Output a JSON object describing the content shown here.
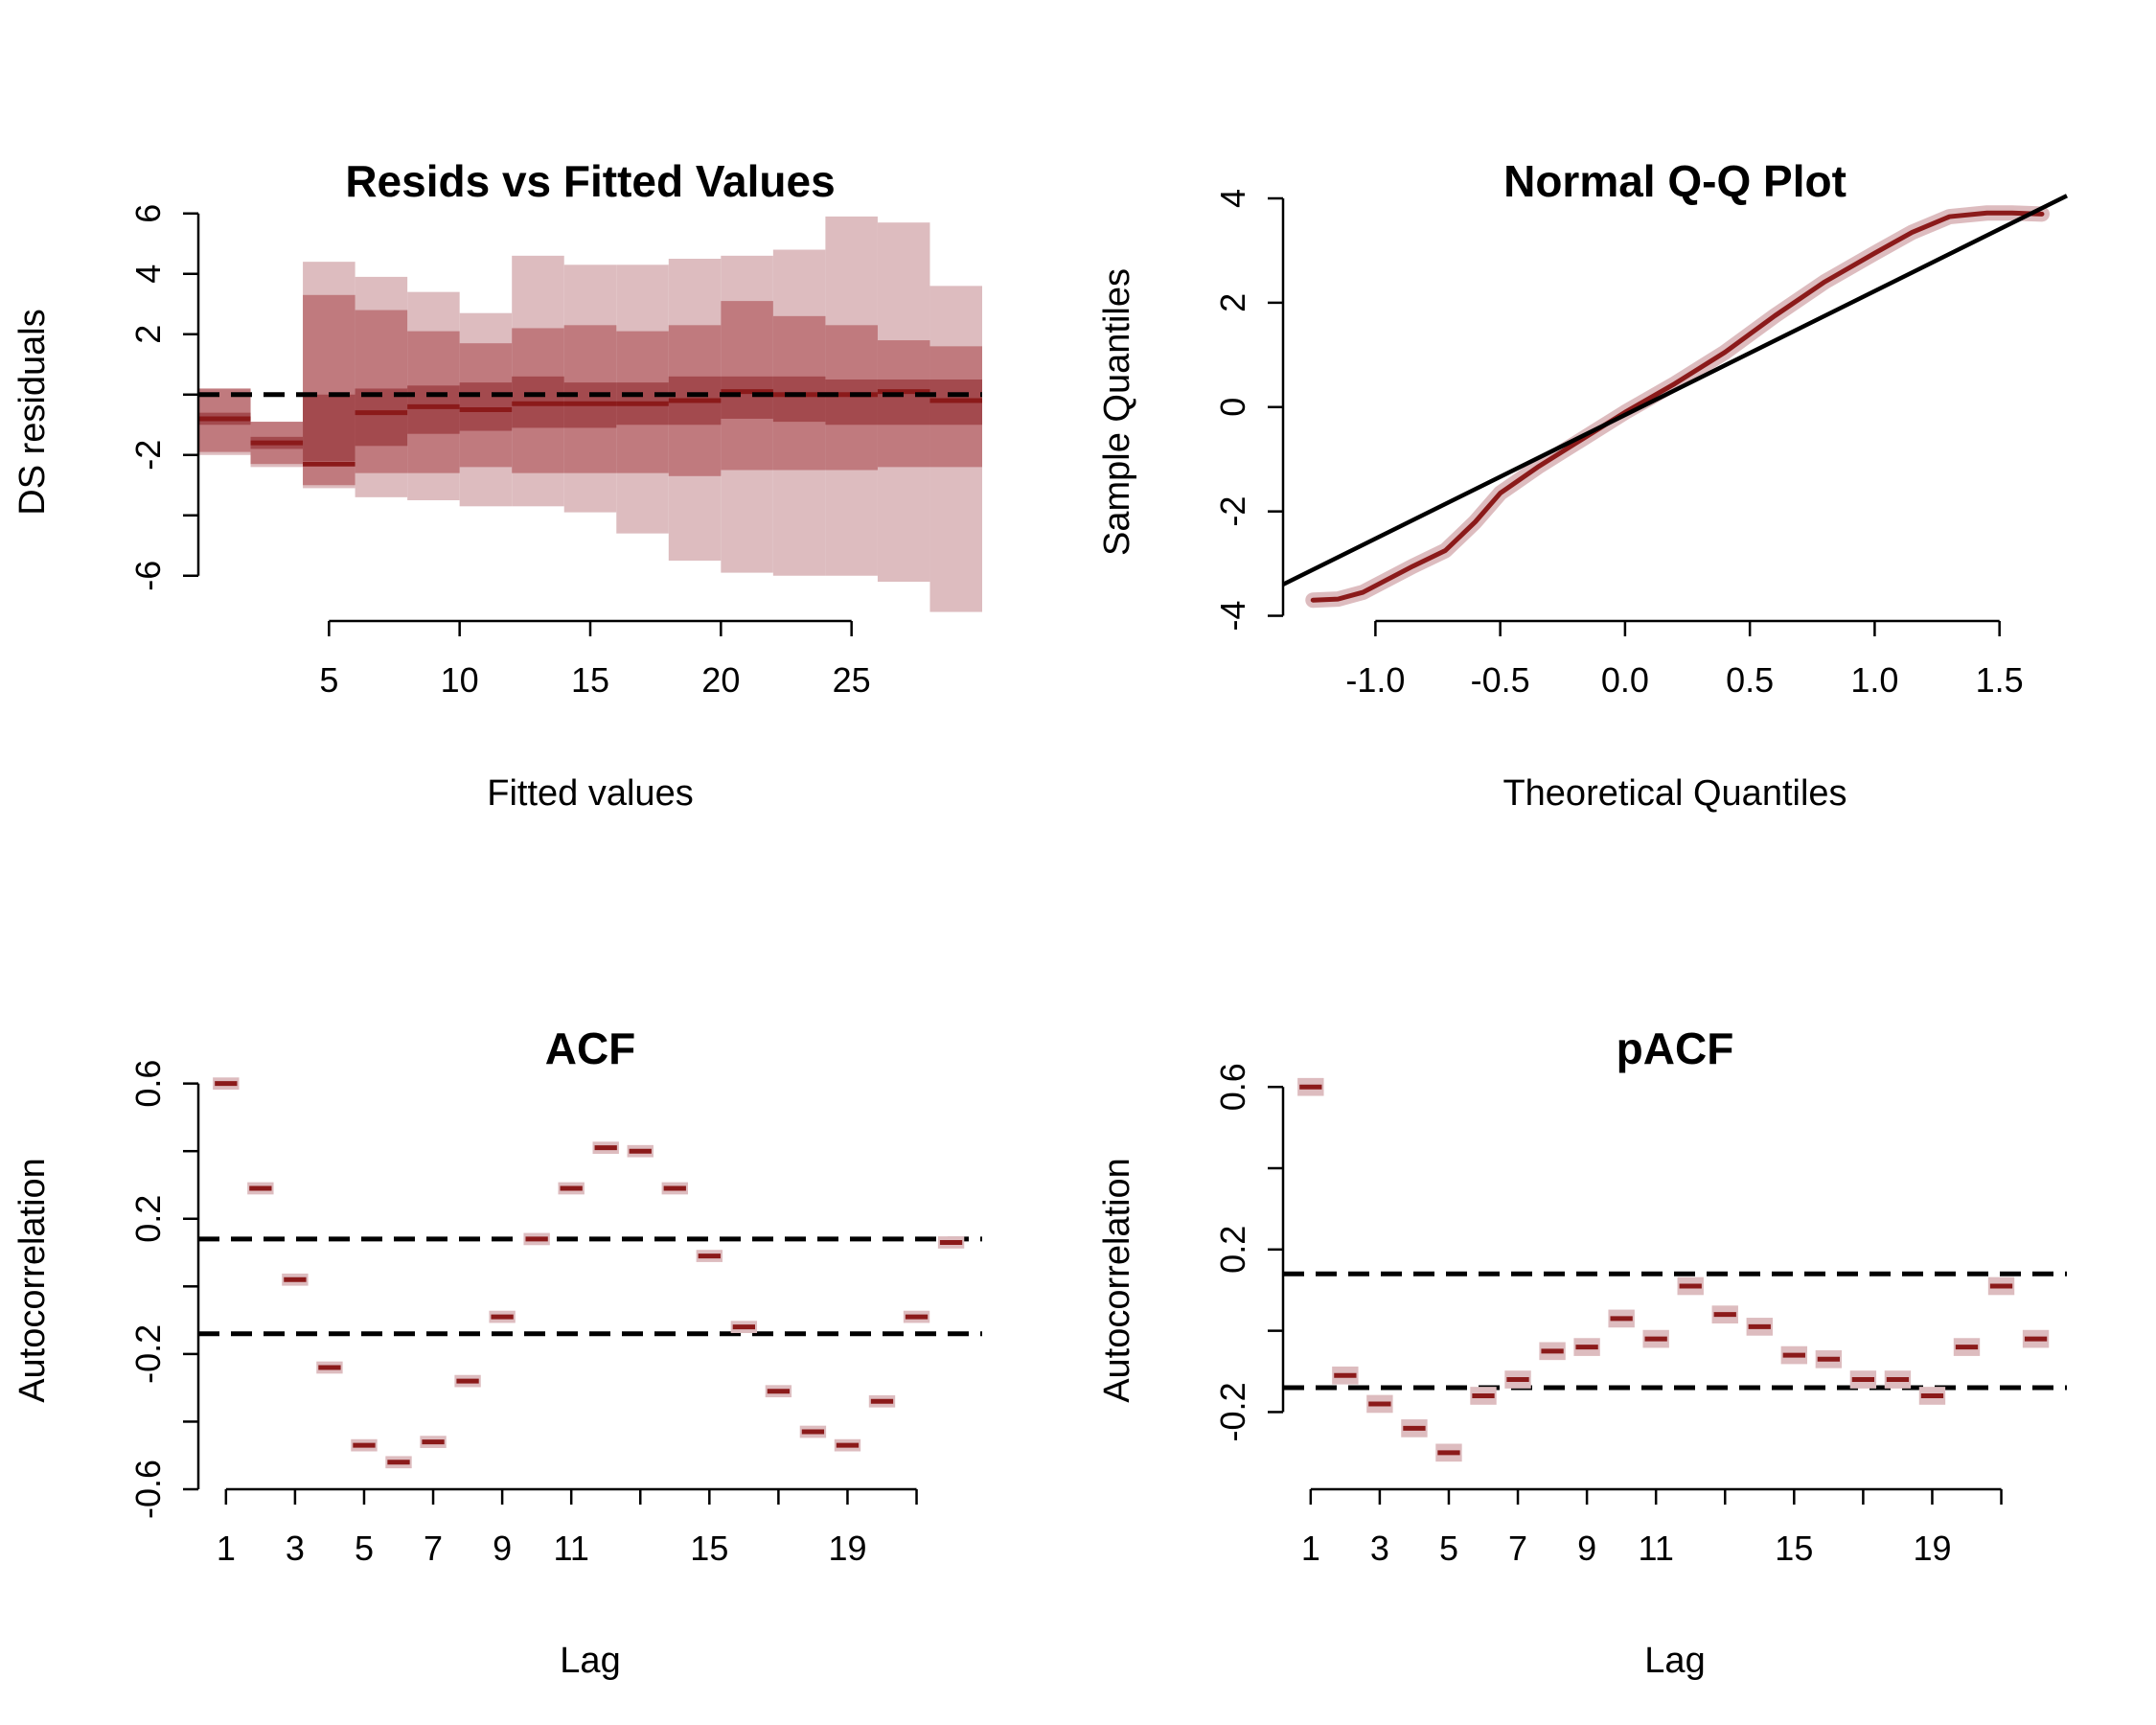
{
  "colors": {
    "median": "#8b1a1a",
    "band50": "#a34a4e",
    "band80": "#c07a7e",
    "band95": "#ddbcbf",
    "reference": "#000000"
  },
  "chart_data": [
    {
      "id": "resid",
      "type": "step-band",
      "title": "Resids vs Fitted Values",
      "xlabel": "Fitted values",
      "ylabel": "DS residuals",
      "xlim": [
        0,
        30
      ],
      "ylim": [
        -7.5,
        6.5
      ],
      "xticks": [
        5,
        10,
        15,
        20,
        25
      ],
      "xtick_labels": [
        "5",
        "10",
        "15",
        "20",
        "25"
      ],
      "yticks": [
        -6,
        -4,
        -2,
        0,
        2,
        4,
        6
      ],
      "ytick_labels": [
        "-6",
        "",
        "-2",
        "",
        "2",
        "4",
        "6"
      ],
      "reference_line_y": 0,
      "bins_x": [
        0,
        2,
        4,
        6,
        8,
        10,
        12,
        14,
        16,
        18,
        20,
        22,
        24,
        26,
        28,
        30
      ],
      "median": [
        -0.8,
        -1.6,
        -2.3,
        -0.6,
        -0.4,
        -0.5,
        -0.3,
        -0.3,
        -0.3,
        -0.2,
        0.1,
        0.0,
        0.0,
        0.1,
        -0.2
      ],
      "band50": [
        [
          -1.0,
          -0.6
        ],
        [
          -1.8,
          -1.4
        ],
        [
          -2.2,
          0.0
        ],
        [
          -1.7,
          0.2
        ],
        [
          -1.3,
          0.3
        ],
        [
          -1.2,
          0.4
        ],
        [
          -1.1,
          0.6
        ],
        [
          -1.1,
          0.4
        ],
        [
          -1.0,
          0.4
        ],
        [
          -1.0,
          0.6
        ],
        [
          -0.8,
          0.6
        ],
        [
          -0.9,
          0.6
        ],
        [
          -1.0,
          0.5
        ],
        [
          -1.0,
          0.5
        ],
        [
          -1.0,
          0.5
        ]
      ],
      "band80": [
        [
          -1.9,
          0.2
        ],
        [
          -2.3,
          -0.9
        ],
        [
          -3.0,
          3.3
        ],
        [
          -2.6,
          2.8
        ],
        [
          -2.6,
          2.1
        ],
        [
          -2.4,
          1.7
        ],
        [
          -2.6,
          2.2
        ],
        [
          -2.6,
          2.3
        ],
        [
          -2.6,
          2.1
        ],
        [
          -2.7,
          2.3
        ],
        [
          -2.5,
          3.1
        ],
        [
          -2.5,
          2.6
        ],
        [
          -2.5,
          2.3
        ],
        [
          -2.4,
          1.8
        ],
        [
          -2.4,
          1.6
        ]
      ],
      "band95": [
        [
          -2.0,
          0.2
        ],
        [
          -2.4,
          -0.9
        ],
        [
          -3.1,
          4.4
        ],
        [
          -3.4,
          3.9
        ],
        [
          -3.5,
          3.4
        ],
        [
          -3.7,
          2.7
        ],
        [
          -3.7,
          4.6
        ],
        [
          -3.9,
          4.3
        ],
        [
          -4.6,
          4.3
        ],
        [
          -5.5,
          4.5
        ],
        [
          -5.9,
          4.6
        ],
        [
          -6.0,
          4.8
        ],
        [
          -6.0,
          5.9
        ],
        [
          -6.2,
          5.7
        ],
        [
          -7.2,
          3.6
        ]
      ]
    },
    {
      "id": "qq",
      "type": "line",
      "title": "Normal Q-Q Plot",
      "xlabel": "Theoretical Quantiles",
      "ylabel": "Sample Quantiles",
      "xlim": [
        -1.37,
        1.77
      ],
      "ylim": [
        -4.1,
        4.0
      ],
      "xticks": [
        -1.0,
        -0.5,
        0.0,
        0.5,
        1.0,
        1.5
      ],
      "xtick_labels": [
        "-1.0",
        "-0.5",
        "0.0",
        "0.5",
        "1.0",
        "1.5"
      ],
      "yticks": [
        -4,
        -2,
        0,
        2,
        4
      ],
      "ytick_labels": [
        "-4",
        "-2",
        "0",
        "2",
        "4"
      ],
      "reference_line": [
        [
          -1.37,
          -3.4
        ],
        [
          1.77,
          4.05
        ]
      ],
      "x": [
        -1.25,
        -1.15,
        -1.05,
        -0.95,
        -0.85,
        -0.72,
        -0.6,
        -0.5,
        -0.35,
        -0.2,
        0.0,
        0.2,
        0.4,
        0.6,
        0.8,
        1.0,
        1.15,
        1.3,
        1.45,
        1.55,
        1.67
      ],
      "y": [
        -3.7,
        -3.68,
        -3.55,
        -3.3,
        -3.05,
        -2.75,
        -2.2,
        -1.65,
        -1.15,
        -0.7,
        -0.1,
        0.45,
        1.05,
        1.75,
        2.4,
        2.95,
        3.35,
        3.65,
        3.72,
        3.72,
        3.7
      ]
    },
    {
      "id": "acf",
      "type": "interval",
      "title": "ACF",
      "xlabel": "Lag",
      "ylabel": "Autocorrelation",
      "xlim": [
        0.2,
        22.9
      ],
      "ylim": [
        -0.6,
        0.65
      ],
      "xticks": [
        1,
        3,
        5,
        7,
        9,
        11,
        13,
        15,
        17,
        19,
        21
      ],
      "xtick_labels": [
        "1",
        "3",
        "5",
        "7",
        "9",
        "11",
        "",
        "15",
        "",
        "19",
        ""
      ],
      "yticks": [
        -0.6,
        -0.4,
        -0.2,
        0.0,
        0.2,
        0.4,
        0.6
      ],
      "ytick_labels": [
        "-0.6",
        "",
        "-0.2",
        "",
        "0.2",
        "",
        "0.6"
      ],
      "reference_lines_y": [
        0.14,
        -0.14
      ],
      "lags": [
        1,
        2,
        3,
        4,
        5,
        6,
        7,
        8,
        9,
        10,
        11,
        12,
        13,
        14,
        15,
        16,
        17,
        18,
        19,
        20,
        21,
        22
      ],
      "values": [
        0.6,
        0.29,
        0.02,
        -0.24,
        -0.47,
        -0.52,
        -0.46,
        -0.28,
        -0.09,
        0.14,
        0.29,
        0.41,
        0.4,
        0.29,
        0.09,
        -0.12,
        -0.31,
        -0.43,
        -0.47,
        -0.34,
        -0.09,
        0.13
      ],
      "half_width": 0.018
    },
    {
      "id": "pacf",
      "type": "interval",
      "title": "pACF",
      "xlabel": "Lag",
      "ylabel": "Autocorrelation",
      "xlim": [
        0.2,
        22.9
      ],
      "ylim": [
        -0.39,
        0.65
      ],
      "xticks": [
        1,
        3,
        5,
        7,
        9,
        11,
        13,
        15,
        17,
        19,
        21
      ],
      "xtick_labels": [
        "1",
        "3",
        "5",
        "7",
        "9",
        "11",
        "",
        "15",
        "",
        "19",
        ""
      ],
      "yticks": [
        -0.2,
        0.0,
        0.2,
        0.4,
        0.6
      ],
      "ytick_labels": [
        "-0.2",
        "",
        "0.2",
        "",
        "0.6"
      ],
      "reference_lines_y": [
        0.14,
        -0.14
      ],
      "lags": [
        1,
        2,
        3,
        4,
        5,
        6,
        7,
        8,
        9,
        10,
        11,
        12,
        13,
        14,
        15,
        16,
        17,
        18,
        19,
        20,
        21,
        22
      ],
      "values": [
        0.6,
        -0.11,
        -0.18,
        -0.24,
        -0.3,
        -0.16,
        -0.12,
        -0.05,
        -0.04,
        0.03,
        -0.02,
        0.11,
        0.04,
        0.01,
        -0.06,
        -0.07,
        -0.12,
        -0.12,
        -0.16,
        -0.04,
        0.11,
        -0.02
      ],
      "half_width": 0.022
    }
  ]
}
